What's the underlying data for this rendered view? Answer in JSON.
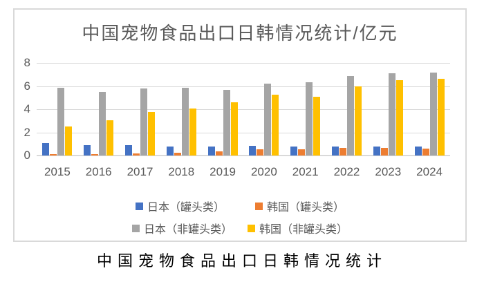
{
  "chart": {
    "caption": "中国宠物食品出口日韩情况统计"
  },
  "chart_data": {
    "type": "bar",
    "title": "中国宠物食品出口日韩情况统计/亿元",
    "xlabel": "",
    "ylabel": "",
    "unit": "亿元",
    "categories": [
      "2015",
      "2016",
      "2017",
      "2018",
      "2019",
      "2020",
      "2021",
      "2022",
      "2023",
      "2024"
    ],
    "series": [
      {
        "name": "日本（罐头类）",
        "color": "#4472C4",
        "values": [
          1.1,
          0.9,
          0.9,
          0.8,
          0.8,
          0.85,
          0.8,
          0.75,
          0.8,
          0.75
        ]
      },
      {
        "name": "韩国（罐头类）",
        "color": "#ED7D31",
        "values": [
          0.1,
          0.15,
          0.2,
          0.25,
          0.35,
          0.55,
          0.55,
          0.65,
          0.65,
          0.6
        ]
      },
      {
        "name": "日本（非罐头类）",
        "color": "#A5A5A5",
        "values": [
          5.85,
          5.5,
          5.8,
          5.85,
          5.65,
          6.2,
          6.3,
          6.85,
          7.1,
          7.15
        ]
      },
      {
        "name": "韩国（非罐头类）",
        "color": "#FFC000",
        "values": [
          2.5,
          3.05,
          3.75,
          4.05,
          4.6,
          5.25,
          5.1,
          6.0,
          6.5,
          6.65
        ]
      }
    ],
    "ylim": [
      0,
      8
    ],
    "yticks": [
      0,
      2,
      4,
      6,
      8
    ],
    "grid": true,
    "legend_position": "bottom",
    "legend_rows": [
      [
        0,
        1
      ],
      [
        2,
        3
      ]
    ],
    "colors": {
      "grid": "#D9D9D9",
      "frame_border": "#D9D9D9",
      "axis_text": "#595959",
      "title_text": "#595959",
      "caption_text": "#000000"
    }
  }
}
